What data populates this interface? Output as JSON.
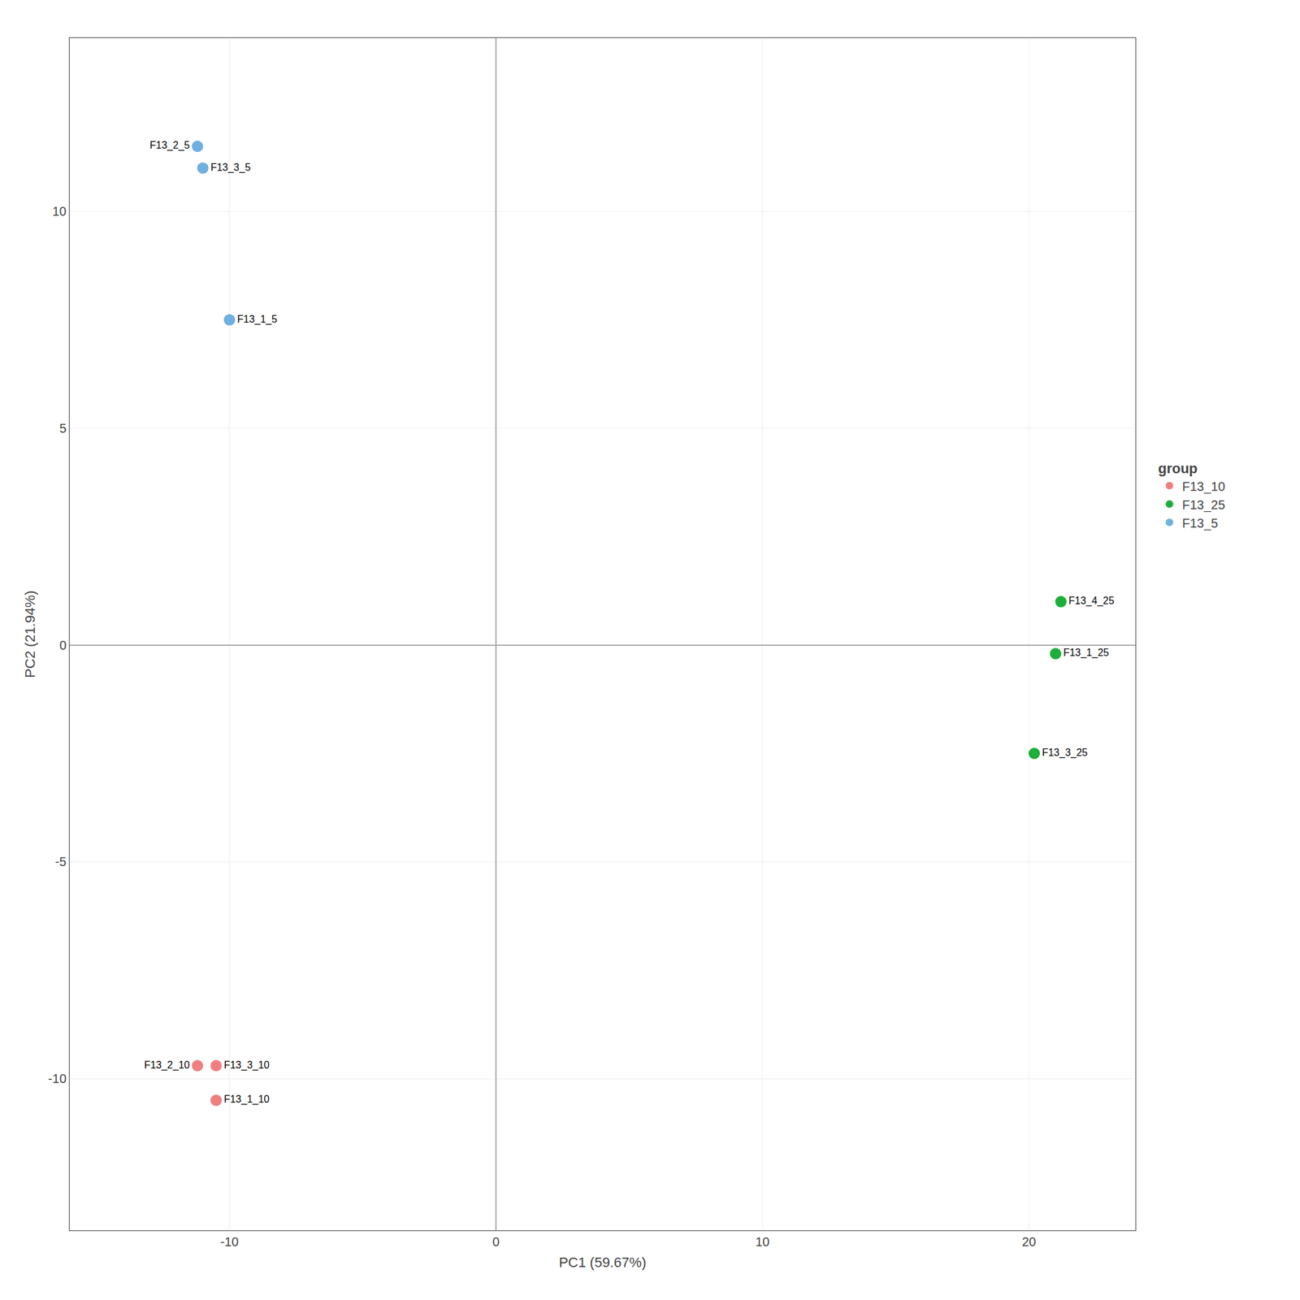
{
  "chart_data": {
    "type": "scatter",
    "xlabel": "PC1 (59.67%)",
    "ylabel": "PC2 (21.94%)",
    "legend_title": "group",
    "xlim": [
      -16,
      24
    ],
    "ylim": [
      -13.5,
      14.0
    ],
    "xticks": [
      -10,
      0,
      10,
      20
    ],
    "yticks": [
      -10,
      -5,
      0,
      5,
      10
    ],
    "grid": true,
    "legend": "right",
    "marker": "circle",
    "series": [
      {
        "name": "F13_10",
        "color": "#F08080",
        "x": [
          -11.2,
          -10.5,
          -10.5
        ],
        "values": [
          -9.7,
          -9.7,
          -10.5
        ],
        "labels": [
          "F13_2_10",
          "F13_3_10",
          "F13_1_10"
        ]
      },
      {
        "name": "F13_25",
        "color": "#1DAE3B",
        "x": [
          21.2,
          21.0,
          20.2
        ],
        "values": [
          1.0,
          -0.2,
          -2.5
        ],
        "labels": [
          "F13_4_25",
          "F13_1_25",
          "F13_3_25"
        ]
      },
      {
        "name": "F13_5",
        "color": "#6EB0E0",
        "x": [
          -11.2,
          -11.0,
          -10.0
        ],
        "values": [
          11.5,
          11.0,
          7.5
        ],
        "labels": [
          "F13_2_5",
          "F13_3_5",
          "F13_1_5"
        ]
      }
    ]
  }
}
